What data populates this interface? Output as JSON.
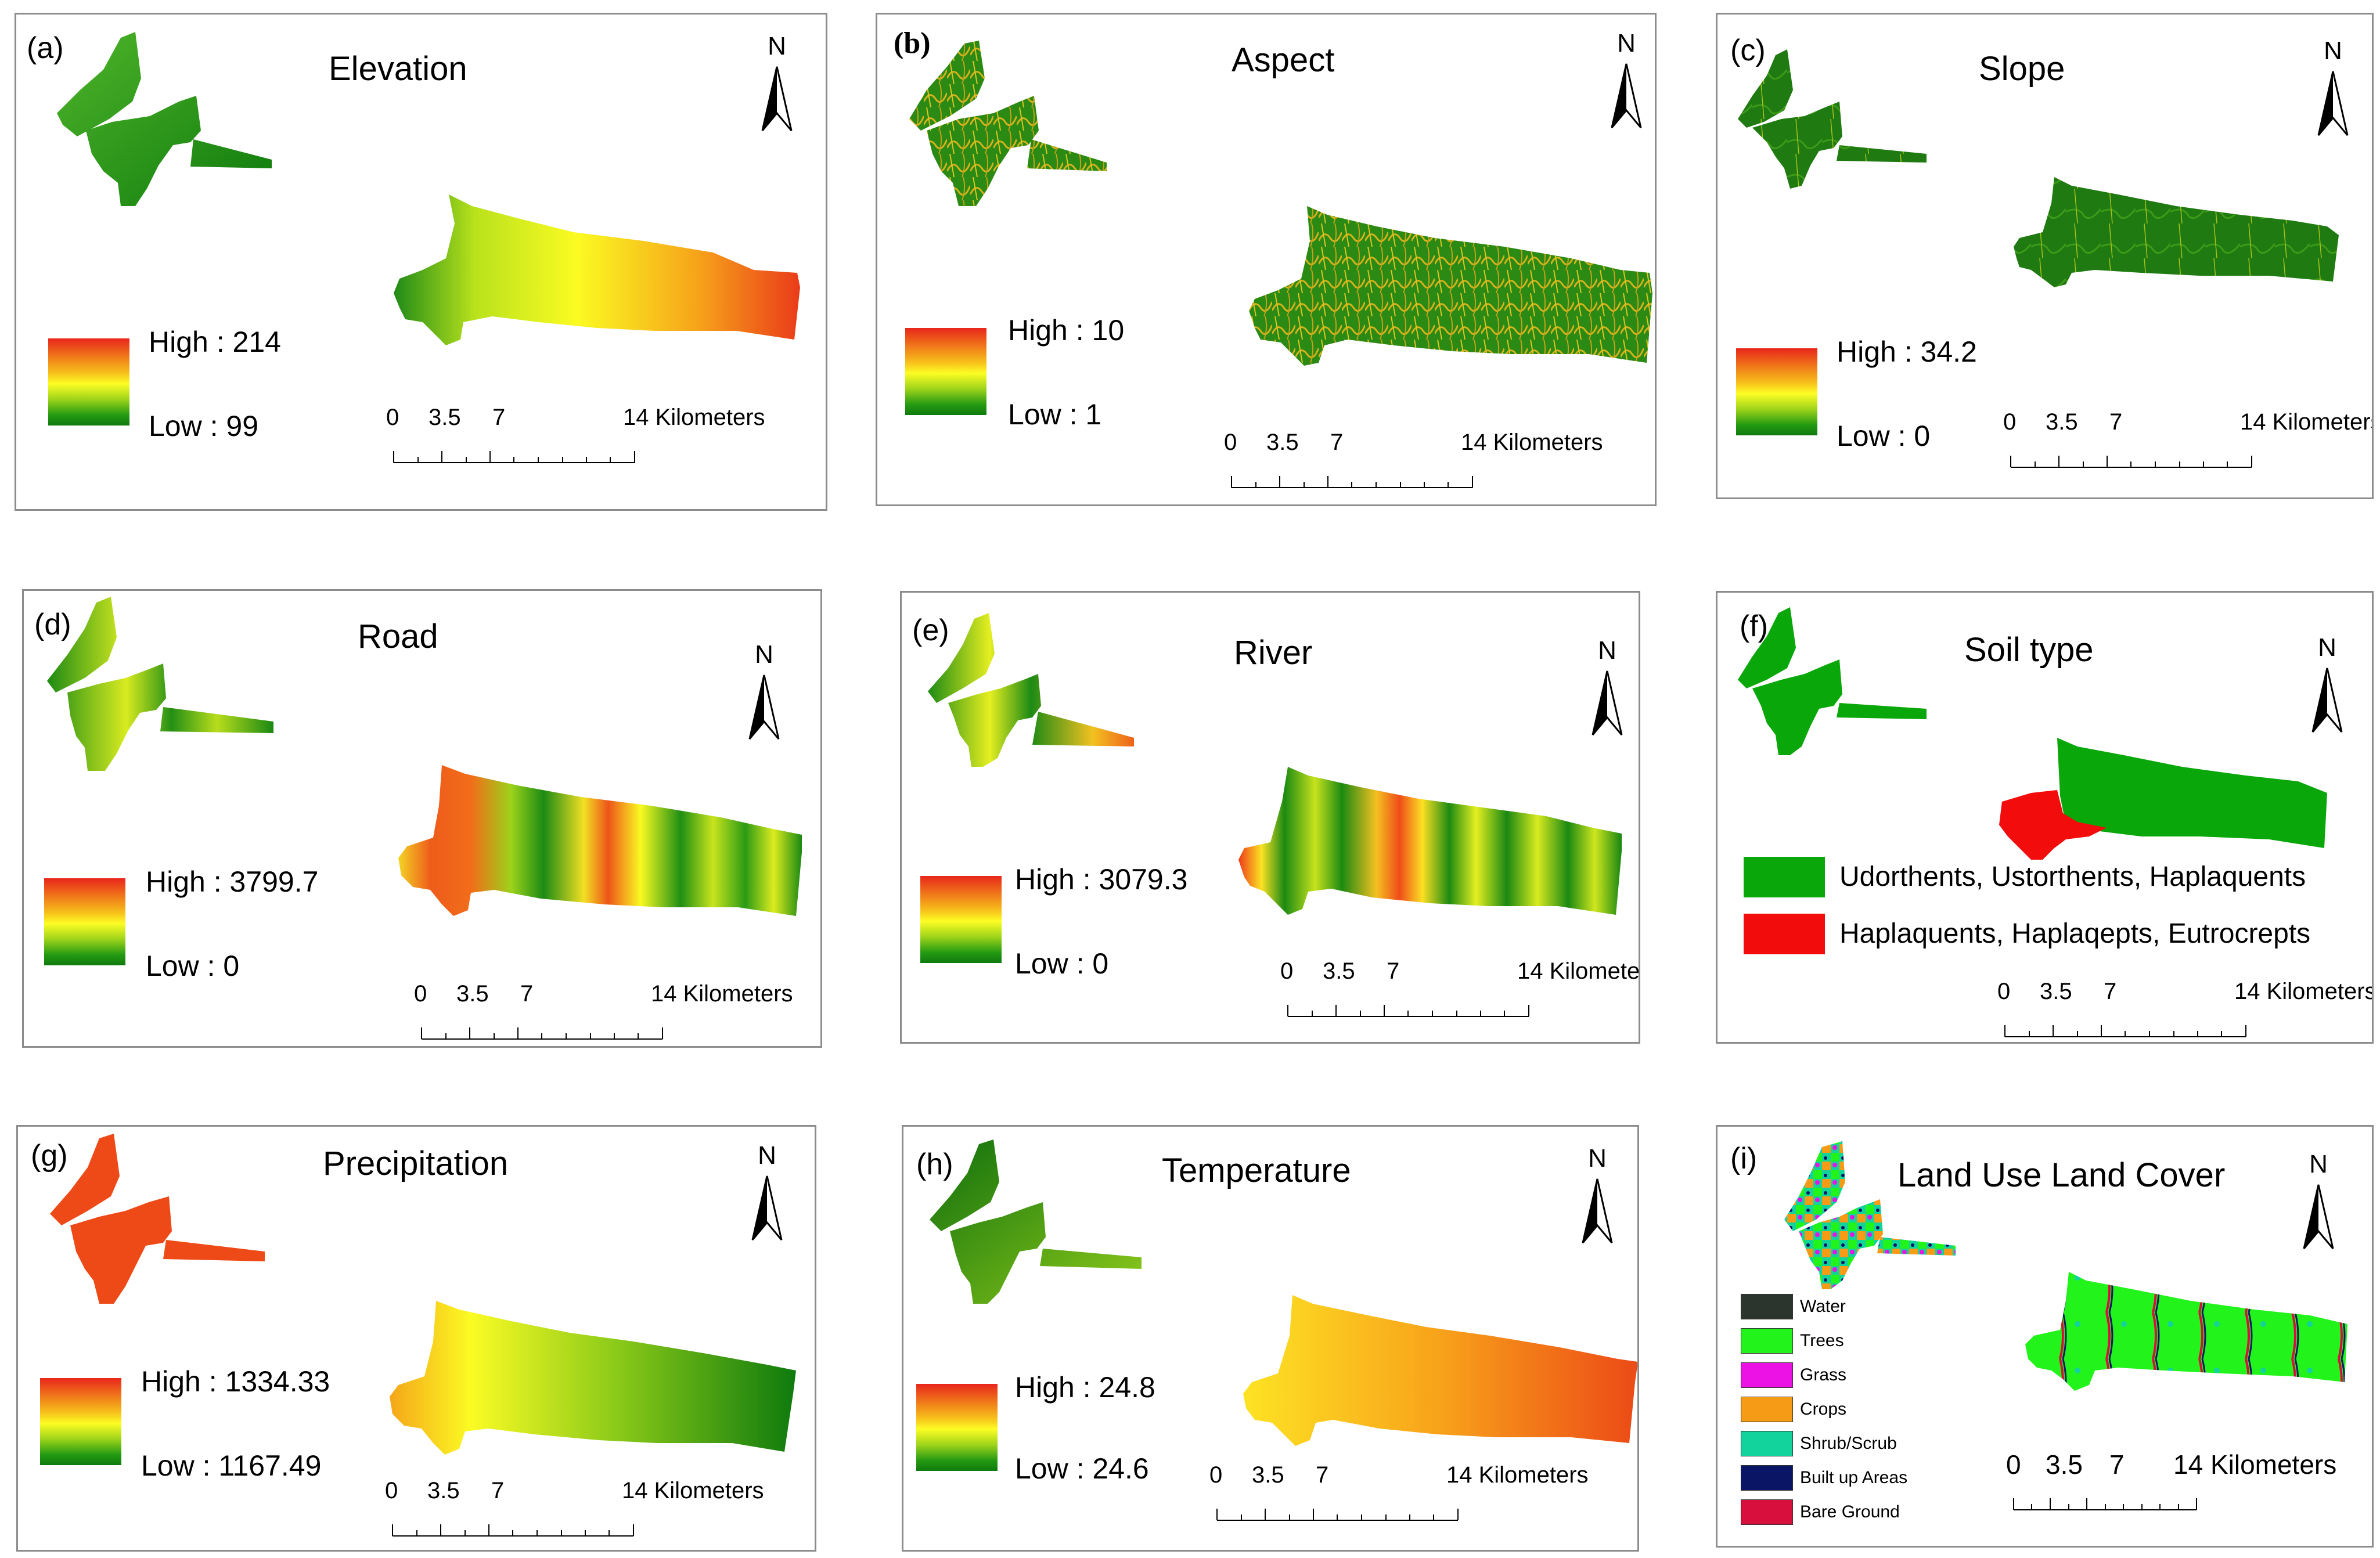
{
  "north_label": "N",
  "scale": {
    "ticks": [
      "0",
      "3.5",
      "7",
      "14 Kilometers"
    ]
  },
  "colors": {
    "high": "#e8261b",
    "mid": "#fdfd24",
    "low": "#0f7a0e"
  },
  "panels": {
    "a": {
      "label": "(a)",
      "title": "Elevation",
      "high": "High : 214",
      "low": "Low : 99"
    },
    "b": {
      "label": "(b)",
      "title": "Aspect",
      "high": "High : 10",
      "low": "Low : 1"
    },
    "c": {
      "label": "(c)",
      "title": "Slope",
      "high": "High : 34.2",
      "low": "Low : 0"
    },
    "d": {
      "label": "(d)",
      "title": "Road",
      "high": "High : 3799.7",
      "low": "Low : 0"
    },
    "e": {
      "label": "(e)",
      "title": "River",
      "high": "High : 3079.3",
      "low": "Low : 0"
    },
    "f": {
      "label": "(f)",
      "title": "Soil type",
      "classes": [
        {
          "name": "Udorthents, Ustorthents, Haplaquents",
          "color": "#0aa70a"
        },
        {
          "name": "Haplaquents, Haplaqepts, Eutrocrepts",
          "color": "#f20c0c"
        }
      ]
    },
    "g": {
      "label": "(g)",
      "title": "Precipitation",
      "high": "High : 1334.33",
      "low": "Low : 1167.49"
    },
    "h": {
      "label": "(h)",
      "title": "Temperature",
      "high": "High : 24.8",
      "low": "Low : 24.6"
    },
    "i": {
      "label": "(i)",
      "title": "Land Use Land Cover",
      "classes": [
        {
          "name": "Water",
          "color": "#2b352d"
        },
        {
          "name": "Trees",
          "color": "#21f31b"
        },
        {
          "name": "Grass",
          "color": "#ec12e6"
        },
        {
          "name": "Crops",
          "color": "#f59b16"
        },
        {
          "name": "Shrub/Scrub",
          "color": "#12d39c"
        },
        {
          "name": "Built up Areas",
          "color": "#0b1566"
        },
        {
          "name": "Bare Ground",
          "color": "#d80f3c"
        }
      ]
    }
  }
}
